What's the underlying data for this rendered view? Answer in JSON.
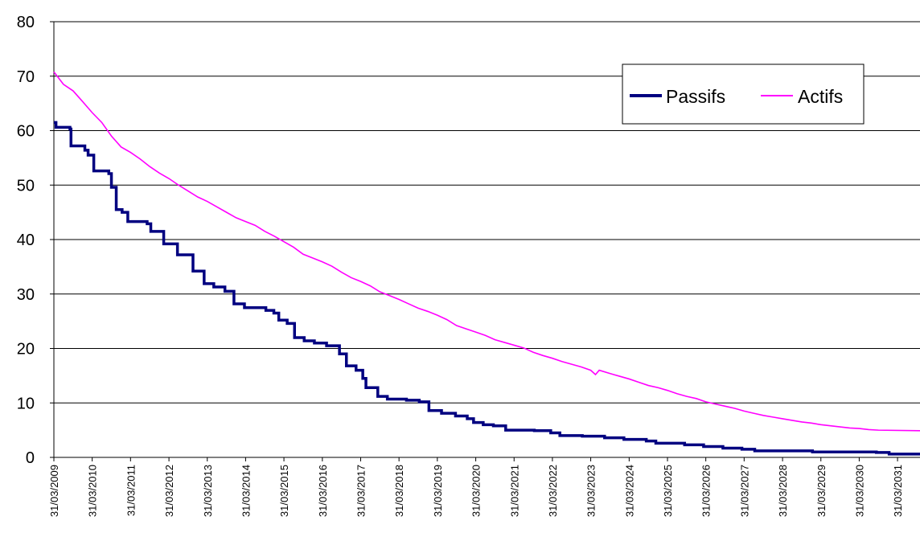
{
  "chart_data": {
    "type": "line",
    "title": "",
    "xlabel": "",
    "ylabel": "",
    "ylim": [
      0,
      80
    ],
    "xlim": [
      "2009-03-31",
      "2031-10-31"
    ],
    "y_ticks": [
      "0",
      "10",
      "20",
      "30",
      "40",
      "50",
      "60",
      "70",
      "80"
    ],
    "x_ticks": [
      "31/03/2009",
      "31/03/2010",
      "31/03/2011",
      "31/03/2012",
      "31/03/2013",
      "31/03/2014",
      "31/03/2015",
      "31/03/2016",
      "31/03/2017",
      "31/03/2018",
      "31/03/2019",
      "31/03/2020",
      "31/03/2021",
      "31/03/2022",
      "31/03/2023",
      "31/03/2024",
      "31/03/2025",
      "31/03/2026",
      "31/03/2027",
      "31/03/2028",
      "31/03/2029",
      "31/03/2030",
      "31/03/2031"
    ],
    "grid": "horizontal",
    "legend_position": "top-right",
    "series": [
      {
        "name": "Passifs",
        "color": "#000080",
        "step": true,
        "points": [
          [
            "2009-03-31",
            61.5
          ],
          [
            "2009-04-20",
            60.6
          ],
          [
            "2009-08-31",
            60.3
          ],
          [
            "2009-09-10",
            57.2
          ],
          [
            "2010-01-20",
            56.4
          ],
          [
            "2010-02-20",
            55.5
          ],
          [
            "2010-04-15",
            52.6
          ],
          [
            "2010-09-05",
            52.1
          ],
          [
            "2010-09-30",
            49.6
          ],
          [
            "2010-11-15",
            45.5
          ],
          [
            "2011-01-10",
            45.0
          ],
          [
            "2011-03-05",
            43.3
          ],
          [
            "2011-09-05",
            42.9
          ],
          [
            "2011-10-10",
            41.5
          ],
          [
            "2012-02-10",
            39.2
          ],
          [
            "2012-06-20",
            37.2
          ],
          [
            "2012-11-15",
            34.2
          ],
          [
            "2013-03-01",
            31.9
          ],
          [
            "2013-06-01",
            31.3
          ],
          [
            "2013-09-15",
            30.5
          ],
          [
            "2013-12-10",
            28.2
          ],
          [
            "2014-03-20",
            27.5
          ],
          [
            "2014-10-10",
            27.0
          ],
          [
            "2014-12-25",
            26.5
          ],
          [
            "2015-02-10",
            25.2
          ],
          [
            "2015-05-01",
            24.6
          ],
          [
            "2015-07-10",
            22.0
          ],
          [
            "2015-10-10",
            21.4
          ],
          [
            "2016-01-15",
            21.0
          ],
          [
            "2016-05-10",
            20.5
          ],
          [
            "2016-09-10",
            19.0
          ],
          [
            "2016-11-15",
            16.8
          ],
          [
            "2017-02-15",
            16.0
          ],
          [
            "2017-04-20",
            14.5
          ],
          [
            "2017-05-20",
            12.8
          ],
          [
            "2017-09-10",
            11.2
          ],
          [
            "2017-12-10",
            10.7
          ],
          [
            "2018-06-10",
            10.5
          ],
          [
            "2018-10-10",
            10.2
          ],
          [
            "2019-01-10",
            8.6
          ],
          [
            "2019-05-10",
            8.1
          ],
          [
            "2019-09-20",
            7.6
          ],
          [
            "2020-01-10",
            7.1
          ],
          [
            "2020-03-10",
            6.4
          ],
          [
            "2020-06-10",
            6.0
          ],
          [
            "2020-09-15",
            5.8
          ],
          [
            "2021-01-10",
            5.0
          ],
          [
            "2021-10-10",
            4.9
          ],
          [
            "2022-03-15",
            4.5
          ],
          [
            "2022-06-10",
            4.0
          ],
          [
            "2023-01-10",
            3.9
          ],
          [
            "2023-08-10",
            3.6
          ],
          [
            "2024-02-10",
            3.3
          ],
          [
            "2024-09-10",
            3.0
          ],
          [
            "2024-12-10",
            2.6
          ],
          [
            "2025-09-10",
            2.3
          ],
          [
            "2026-03-10",
            2.0
          ],
          [
            "2026-09-10",
            1.7
          ],
          [
            "2027-03-10",
            1.5
          ],
          [
            "2027-07-10",
            1.2
          ],
          [
            "2029-01-10",
            1.0
          ],
          [
            "2030-09-10",
            0.9
          ],
          [
            "2031-01-10",
            0.6
          ],
          [
            "2031-10-31",
            0.6
          ]
        ]
      },
      {
        "name": "Actifs",
        "color": "#ff00ff",
        "step": false,
        "points": [
          [
            "2009-03-31",
            70.8
          ],
          [
            "2009-06-30",
            68.5
          ],
          [
            "2009-09-30",
            67.3
          ],
          [
            "2009-12-31",
            65.3
          ],
          [
            "2010-03-31",
            63.3
          ],
          [
            "2010-06-30",
            61.5
          ],
          [
            "2010-09-30",
            59.0
          ],
          [
            "2010-12-31",
            57.0
          ],
          [
            "2011-03-31",
            56.0
          ],
          [
            "2011-06-30",
            54.8
          ],
          [
            "2011-09-30",
            53.4
          ],
          [
            "2011-12-31",
            52.2
          ],
          [
            "2012-03-31",
            51.2
          ],
          [
            "2012-06-30",
            50.0
          ],
          [
            "2012-09-30",
            48.9
          ],
          [
            "2012-12-31",
            47.8
          ],
          [
            "2013-03-31",
            47.0
          ],
          [
            "2013-06-30",
            46.0
          ],
          [
            "2013-09-30",
            45.0
          ],
          [
            "2013-12-31",
            44.0
          ],
          [
            "2014-03-31",
            43.3
          ],
          [
            "2014-06-30",
            42.6
          ],
          [
            "2014-09-30",
            41.5
          ],
          [
            "2014-12-31",
            40.6
          ],
          [
            "2015-03-31",
            39.6
          ],
          [
            "2015-06-30",
            38.6
          ],
          [
            "2015-09-30",
            37.3
          ],
          [
            "2015-12-31",
            36.6
          ],
          [
            "2016-03-31",
            35.9
          ],
          [
            "2016-06-30",
            35.1
          ],
          [
            "2016-09-30",
            34.0
          ],
          [
            "2016-12-31",
            33.0
          ],
          [
            "2017-03-31",
            32.3
          ],
          [
            "2017-06-30",
            31.5
          ],
          [
            "2017-09-30",
            30.4
          ],
          [
            "2017-12-31",
            29.7
          ],
          [
            "2018-03-31",
            29.0
          ],
          [
            "2018-06-30",
            28.2
          ],
          [
            "2018-09-30",
            27.4
          ],
          [
            "2018-12-31",
            26.8
          ],
          [
            "2019-03-31",
            26.1
          ],
          [
            "2019-06-30",
            25.3
          ],
          [
            "2019-09-30",
            24.2
          ],
          [
            "2019-12-31",
            23.6
          ],
          [
            "2020-03-31",
            23.0
          ],
          [
            "2020-06-30",
            22.4
          ],
          [
            "2020-09-30",
            21.6
          ],
          [
            "2020-12-31",
            21.1
          ],
          [
            "2021-03-31",
            20.6
          ],
          [
            "2021-06-30",
            20.1
          ],
          [
            "2021-09-30",
            19.3
          ],
          [
            "2021-12-31",
            18.7
          ],
          [
            "2022-03-31",
            18.2
          ],
          [
            "2022-06-30",
            17.6
          ],
          [
            "2022-09-30",
            17.1
          ],
          [
            "2022-12-31",
            16.6
          ],
          [
            "2023-03-31",
            16.0
          ],
          [
            "2023-05-15",
            15.2
          ],
          [
            "2023-06-20",
            16.0
          ],
          [
            "2023-09-30",
            15.4
          ],
          [
            "2023-12-31",
            14.9
          ],
          [
            "2024-03-31",
            14.4
          ],
          [
            "2024-06-30",
            13.8
          ],
          [
            "2024-09-30",
            13.2
          ],
          [
            "2024-12-31",
            12.8
          ],
          [
            "2025-03-31",
            12.3
          ],
          [
            "2025-06-30",
            11.7
          ],
          [
            "2025-09-30",
            11.2
          ],
          [
            "2025-12-31",
            10.8
          ],
          [
            "2026-03-31",
            10.2
          ],
          [
            "2026-06-30",
            9.8
          ],
          [
            "2026-09-30",
            9.4
          ],
          [
            "2026-12-31",
            9.0
          ],
          [
            "2027-03-31",
            8.5
          ],
          [
            "2027-06-30",
            8.1
          ],
          [
            "2027-09-30",
            7.7
          ],
          [
            "2027-12-31",
            7.4
          ],
          [
            "2028-03-31",
            7.1
          ],
          [
            "2028-06-30",
            6.8
          ],
          [
            "2028-09-30",
            6.5
          ],
          [
            "2028-12-31",
            6.3
          ],
          [
            "2029-03-31",
            6.0
          ],
          [
            "2029-06-30",
            5.8
          ],
          [
            "2029-09-30",
            5.6
          ],
          [
            "2029-12-31",
            5.4
          ],
          [
            "2030-03-31",
            5.3
          ],
          [
            "2030-06-30",
            5.1
          ],
          [
            "2030-09-30",
            5.0
          ],
          [
            "2031-10-31",
            4.9
          ]
        ]
      }
    ]
  }
}
